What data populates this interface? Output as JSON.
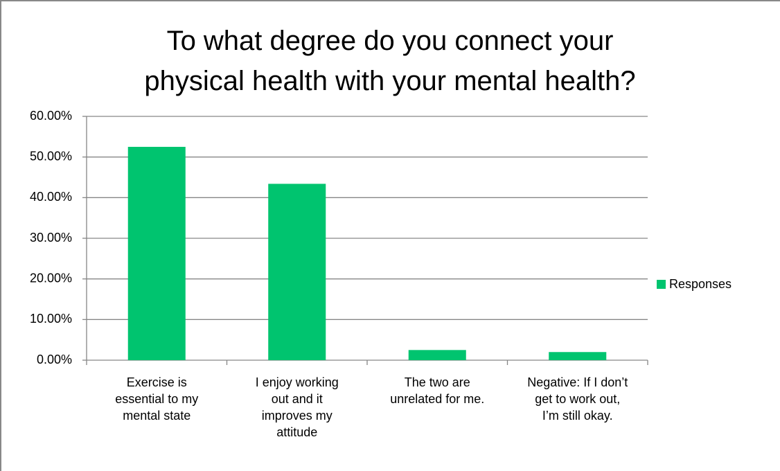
{
  "chart_data": {
    "type": "bar",
    "title": "To what degree do you connect your\nphysical health with your mental health?",
    "categories": [
      "Exercise is\nessential to my\nmental state",
      "I enjoy working\nout and it\nimproves my\nattitude",
      "The two are\nunrelated for me.",
      "Negative: If I don’t\nget to work out,\nI’m still okay."
    ],
    "series": [
      {
        "name": "Responses",
        "color": "#00c46f",
        "values": [
          52.5,
          43.4,
          2.5,
          2.0
        ]
      }
    ],
    "ylim": [
      0,
      60
    ],
    "yticks": [
      {
        "value": 0,
        "label": "0.00%"
      },
      {
        "value": 10,
        "label": "10.00%"
      },
      {
        "value": 20,
        "label": "20.00%"
      },
      {
        "value": 30,
        "label": "30.00%"
      },
      {
        "value": 40,
        "label": "40.00%"
      },
      {
        "value": 50,
        "label": "50.00%"
      },
      {
        "value": 60,
        "label": "60.00%"
      }
    ],
    "grid": true,
    "legend": "right"
  }
}
